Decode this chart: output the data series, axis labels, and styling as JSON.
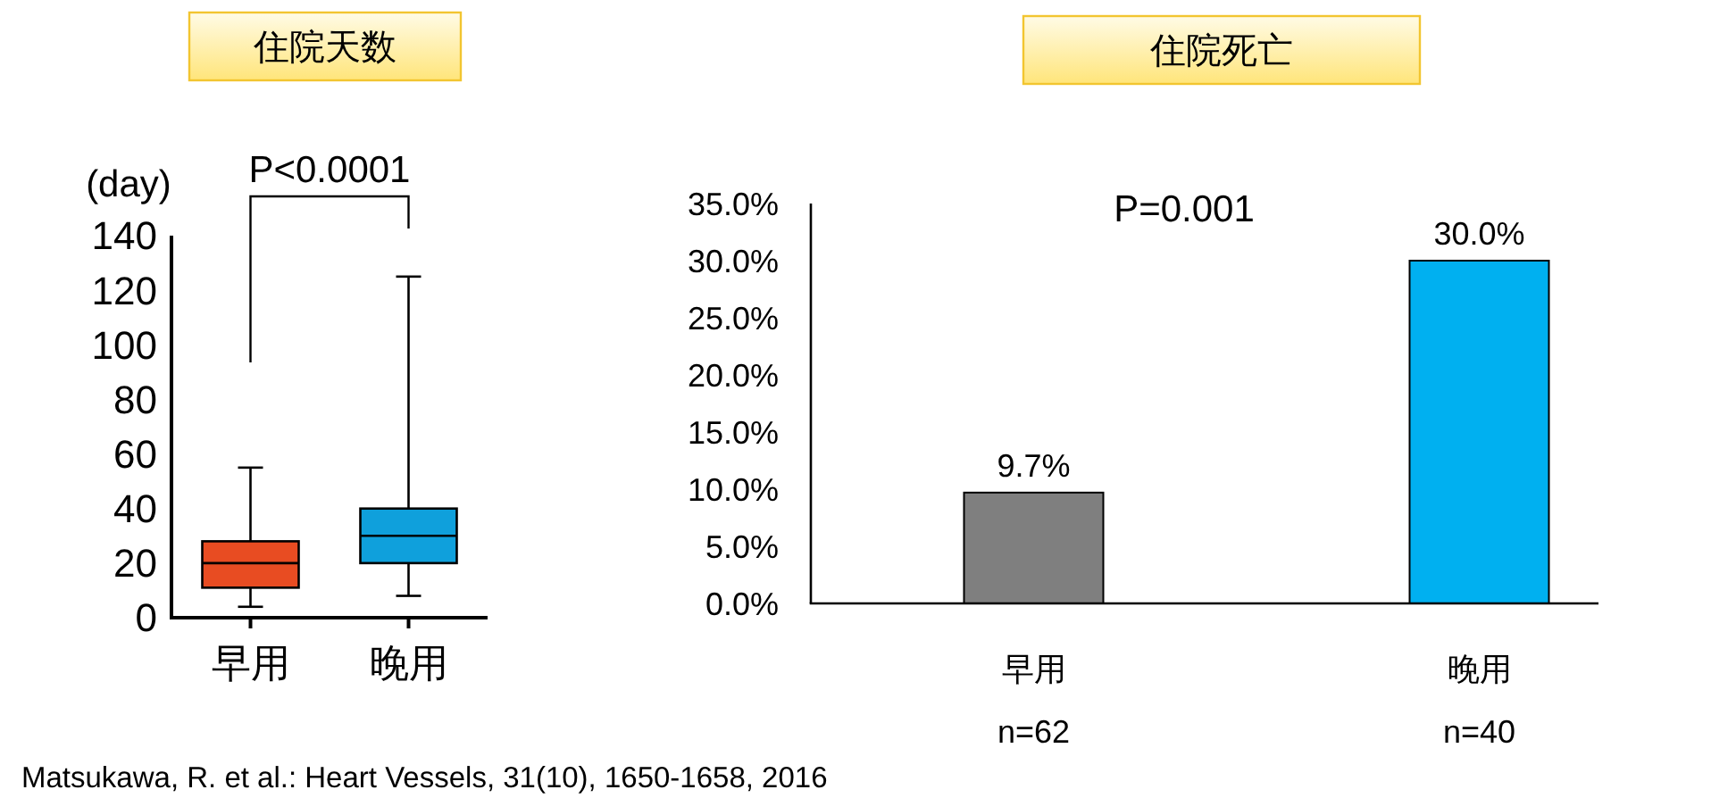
{
  "chart_data": [
    {
      "type": "box",
      "title": "住院天数",
      "ylabel": "(day)",
      "categories": [
        "早用",
        "晚用"
      ],
      "boxes": [
        {
          "low": 4,
          "q1": 11,
          "median": 20,
          "q3": 28,
          "high": 55
        },
        {
          "low": 8,
          "q1": 20,
          "median": 30,
          "q3": 40,
          "high": 125
        }
      ],
      "colors": [
        "#e84c22",
        "#0fa0dc"
      ],
      "ylim": [
        0,
        140
      ],
      "yticks": [
        0,
        20,
        40,
        60,
        80,
        100,
        120,
        140
      ],
      "annotations": [
        "P<0.0001",
        "Matsukawa, R. et al.: Heart Vessels, 31(10), 1650-1658, 2016"
      ]
    },
    {
      "type": "bar",
      "title": "住院死亡",
      "categories": [
        "早用",
        "晚用"
      ],
      "values": [
        9.7,
        30.0
      ],
      "colors": [
        "#7f7f7f",
        "#00b0f0"
      ],
      "ylim": [
        0,
        35
      ],
      "yticks": [
        {
          "value": 0,
          "label": "0.0%"
        },
        {
          "value": 5,
          "label": "5.0%"
        },
        {
          "value": 10,
          "label": "10.0%"
        },
        {
          "value": 15,
          "label": "15.0%"
        },
        {
          "value": 20,
          "label": "20.0%"
        },
        {
          "value": 25,
          "label": "25.0%"
        },
        {
          "value": 30,
          "label": "30.0%"
        },
        {
          "value": 35,
          "label": "35.0%"
        }
      ],
      "value_labels": [
        "9.7%",
        "30.0%"
      ],
      "annotations": [
        "P=0.001",
        "n=62",
        "n=40"
      ]
    }
  ]
}
